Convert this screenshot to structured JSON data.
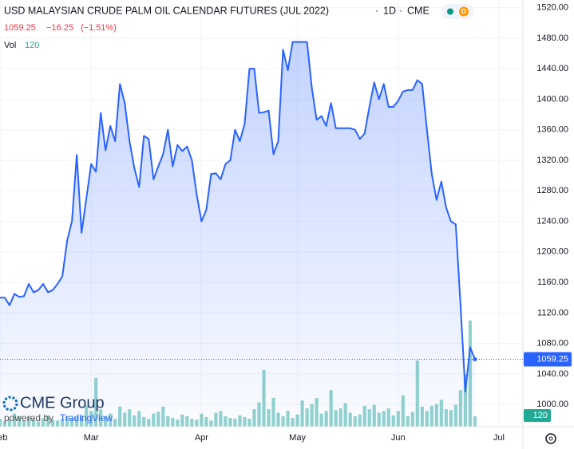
{
  "chart_data": {
    "type": "area",
    "title": "USD MALAYSIAN CRUDE PALM OIL CALENDAR FUTURES (JUL 2022)",
    "interval": "1D",
    "exchange": "CME",
    "badge": "D",
    "last_price": 1059.25,
    "change": {
      "value": -16.25,
      "label": "−16.25"
    },
    "change_pct": {
      "value": -1.51,
      "label": "(−1.51%)"
    },
    "color": "#2962ff",
    "x": [
      0,
      1,
      2,
      3,
      4,
      5,
      6,
      7,
      8,
      9,
      10,
      11,
      12,
      13,
      14,
      15,
      16,
      17,
      18,
      19,
      20,
      21,
      22,
      23,
      24,
      25,
      26,
      27,
      28,
      29,
      30,
      31,
      32,
      33,
      34,
      35,
      36,
      37,
      38,
      39,
      40,
      41,
      42,
      43,
      44,
      45,
      46,
      47,
      48,
      49,
      50,
      51,
      52,
      53,
      54,
      55,
      56,
      57,
      58,
      59,
      60,
      61,
      62,
      63,
      64,
      65,
      66,
      67,
      68,
      69,
      70,
      71,
      72,
      73,
      74,
      75,
      76,
      77,
      78,
      79,
      80,
      81,
      82,
      83,
      84,
      85,
      86,
      87,
      88,
      89,
      90,
      91,
      92,
      93,
      94,
      95,
      96,
      97,
      98,
      99
    ],
    "values": [
      1140,
      1140,
      1130,
      1145,
      1141,
      1142,
      1158,
      1147,
      1150,
      1158,
      1147,
      1150,
      1158,
      1168,
      1215,
      1240,
      1327,
      1225,
      1270,
      1315,
      1305,
      1382,
      1333,
      1365,
      1345,
      1420,
      1395,
      1345,
      1310,
      1285,
      1352,
      1348,
      1295,
      1312,
      1328,
      1360,
      1312,
      1340,
      1332,
      1338,
      1320,
      1275,
      1240,
      1255,
      1302,
      1303,
      1295,
      1315,
      1320,
      1360,
      1345,
      1368,
      1440,
      1440,
      1382,
      1383,
      1385,
      1328,
      1345,
      1465,
      1438,
      1475,
      1475,
      1475,
      1475,
      1415,
      1373,
      1378,
      1365,
      1395,
      1362,
      1362,
      1362,
      1362,
      1360,
      1348,
      1355,
      1390,
      1422,
      1400,
      1420,
      1390,
      1390,
      1398,
      1410,
      1412,
      1412,
      1425,
      1420,
      1360,
      1302,
      1268,
      1292,
      1258,
      1240,
      1236,
      1130,
      1017,
      1075,
      1059.25
    ],
    "volume": {
      "label": "Vol",
      "last": 120,
      "color": "#80cbc4",
      "lim": [
        0,
        4900
      ],
      "values": [
        90,
        60,
        80,
        150,
        120,
        70,
        110,
        90,
        60,
        100,
        130,
        80,
        70,
        90,
        120,
        100,
        110,
        130,
        240,
        180,
        560,
        200,
        120,
        150,
        90,
        230,
        160,
        200,
        130,
        180,
        110,
        90,
        150,
        170,
        230,
        120,
        100,
        80,
        140,
        120,
        90,
        80,
        150,
        110,
        70,
        160,
        180,
        120,
        100,
        90,
        130,
        110,
        90,
        200,
        280,
        650,
        200,
        330,
        160,
        120,
        180,
        100,
        140,
        300,
        210,
        260,
        330,
        150,
        180,
        420,
        190,
        210,
        270,
        160,
        120,
        140,
        240,
        200,
        250,
        160,
        180,
        210,
        130,
        180,
        360,
        120,
        170,
        760,
        230,
        180,
        240,
        260,
        310,
        200,
        190,
        250,
        420,
        600,
        1220,
        120
      ]
    },
    "xlim": [
      0,
      109
    ],
    "xticks": [
      {
        "value": 0,
        "label": "Feb"
      },
      {
        "value": 19,
        "label": "Mar"
      },
      {
        "value": 42,
        "label": "Apr"
      },
      {
        "value": 62,
        "label": "May"
      },
      {
        "value": 83,
        "label": "Jun"
      },
      {
        "value": 104,
        "label": "Jul"
      }
    ],
    "ylim": [
      971,
      1530
    ],
    "yticks": [
      {
        "value": 1000,
        "label": "1000.00"
      },
      {
        "value": 1040,
        "label": "1040.00"
      },
      {
        "value": 1080,
        "label": "1080.00"
      },
      {
        "value": 1120,
        "label": "1120.00"
      },
      {
        "value": 1160,
        "label": "1160.00"
      },
      {
        "value": 1200,
        "label": "1200.00"
      },
      {
        "value": 1240,
        "label": "1240.00"
      },
      {
        "value": 1280,
        "label": "1280.00"
      },
      {
        "value": 1320,
        "label": "1320.00"
      },
      {
        "value": 1360,
        "label": "1360.00"
      },
      {
        "value": 1400,
        "label": "1400.00"
      },
      {
        "value": 1440,
        "label": "1440.00"
      },
      {
        "value": 1480,
        "label": "1480.00"
      },
      {
        "value": 1520,
        "label": "1520.00"
      }
    ],
    "logo": {
      "brand": "CME Group",
      "powered": "powered by",
      "platform": "TradingView"
    }
  }
}
